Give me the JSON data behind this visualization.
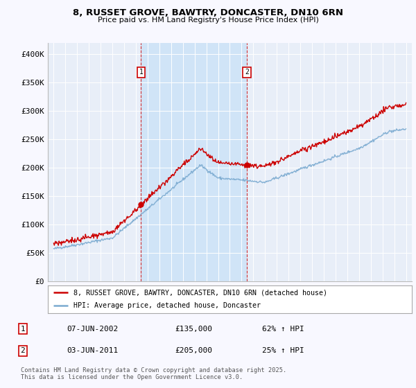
{
  "title_line1": "8, RUSSET GROVE, BAWTRY, DONCASTER, DN10 6RN",
  "title_line2": "Price paid vs. HM Land Registry's House Price Index (HPI)",
  "background_color": "#f8f8ff",
  "plot_bg_color": "#e8eef8",
  "shade_color": "#d0e4f7",
  "red_color": "#cc0000",
  "blue_color": "#7aaad0",
  "annotation1": {
    "label": "1",
    "date_str": "07-JUN-2002",
    "price": 135000,
    "pct": "62% ↑ HPI",
    "x_year": 2002.44
  },
  "annotation2": {
    "label": "2",
    "date_str": "03-JUN-2011",
    "price": 205000,
    "pct": "25% ↑ HPI",
    "x_year": 2011.44
  },
  "legend_entry1": "8, RUSSET GROVE, BAWTRY, DONCASTER, DN10 6RN (detached house)",
  "legend_entry2": "HPI: Average price, detached house, Doncaster",
  "footer": "Contains HM Land Registry data © Crown copyright and database right 2025.\nThis data is licensed under the Open Government Licence v3.0.",
  "ylim": [
    0,
    420000
  ],
  "xlim": [
    1994.5,
    2025.5
  ],
  "yticks": [
    0,
    50000,
    100000,
    150000,
    200000,
    250000,
    300000,
    350000,
    400000
  ],
  "ytick_labels": [
    "£0",
    "£50K",
    "£100K",
    "£150K",
    "£200K",
    "£250K",
    "£300K",
    "£350K",
    "£400K"
  ],
  "xticks": [
    1995,
    1996,
    1997,
    1998,
    1999,
    2000,
    2001,
    2002,
    2003,
    2004,
    2005,
    2006,
    2007,
    2008,
    2009,
    2010,
    2011,
    2012,
    2013,
    2014,
    2015,
    2016,
    2017,
    2018,
    2019,
    2020,
    2021,
    2022,
    2023,
    2024,
    2025
  ]
}
